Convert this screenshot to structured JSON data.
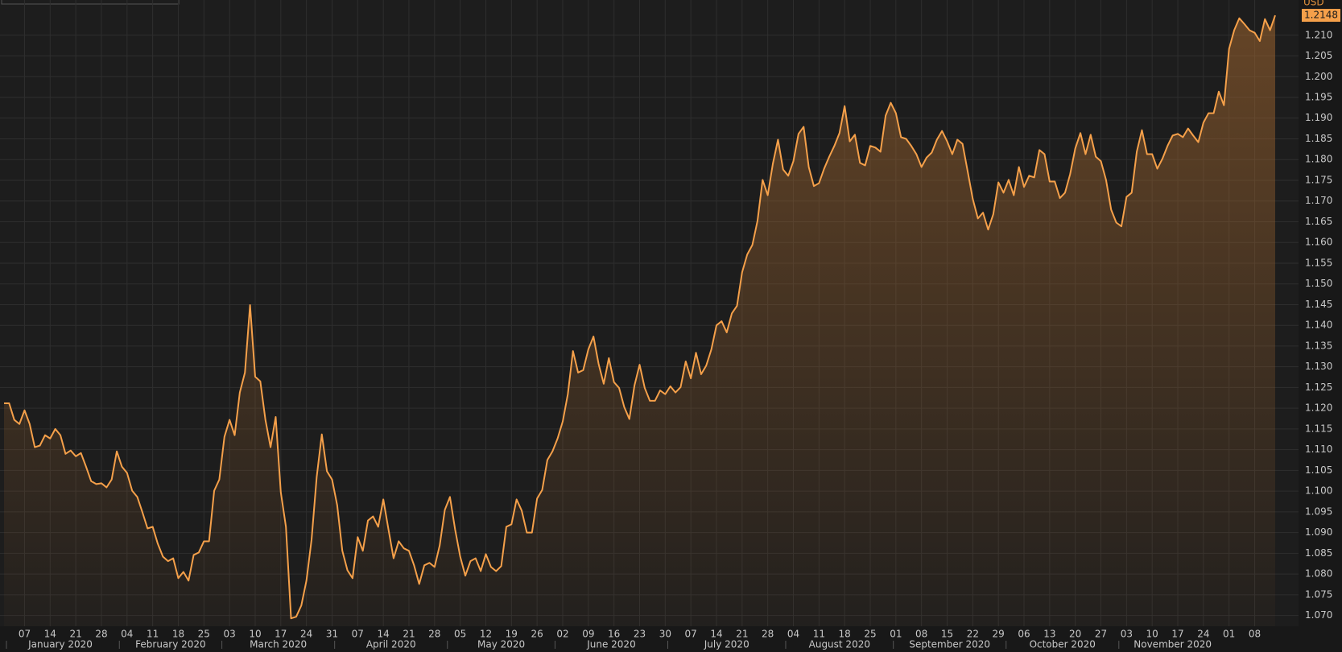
{
  "chart_data": {
    "type": "area",
    "unit": "USD",
    "color": "#f5a04a",
    "grid": true,
    "x": [
      "2020-01-01",
      "2020-01-02",
      "2020-01-03",
      "2020-01-06",
      "2020-01-07",
      "2020-01-08",
      "2020-01-09",
      "2020-01-10",
      "2020-01-13",
      "2020-01-14",
      "2020-01-15",
      "2020-01-16",
      "2020-01-17",
      "2020-01-20",
      "2020-01-21",
      "2020-01-22",
      "2020-01-23",
      "2020-01-24",
      "2020-01-27",
      "2020-01-28",
      "2020-01-29",
      "2020-01-30",
      "2020-01-31",
      "2020-02-03",
      "2020-02-04",
      "2020-02-05",
      "2020-02-06",
      "2020-02-07",
      "2020-02-10",
      "2020-02-11",
      "2020-02-12",
      "2020-02-13",
      "2020-02-14",
      "2020-02-17",
      "2020-02-18",
      "2020-02-19",
      "2020-02-20",
      "2020-02-21",
      "2020-02-24",
      "2020-02-25",
      "2020-02-26",
      "2020-02-27",
      "2020-02-28",
      "2020-03-02",
      "2020-03-03",
      "2020-03-04",
      "2020-03-05",
      "2020-03-06",
      "2020-03-09",
      "2020-03-10",
      "2020-03-11",
      "2020-03-12",
      "2020-03-13",
      "2020-03-16",
      "2020-03-17",
      "2020-03-18",
      "2020-03-19",
      "2020-03-20",
      "2020-03-23",
      "2020-03-24",
      "2020-03-25",
      "2020-03-26",
      "2020-03-27",
      "2020-03-30",
      "2020-03-31",
      "2020-04-01",
      "2020-04-02",
      "2020-04-03",
      "2020-04-06",
      "2020-04-07",
      "2020-04-08",
      "2020-04-09",
      "2020-04-10",
      "2020-04-13",
      "2020-04-14",
      "2020-04-15",
      "2020-04-16",
      "2020-04-17",
      "2020-04-20",
      "2020-04-21",
      "2020-04-22",
      "2020-04-23",
      "2020-04-24",
      "2020-04-27",
      "2020-04-28",
      "2020-04-29",
      "2020-04-30",
      "2020-05-01",
      "2020-05-04",
      "2020-05-05",
      "2020-05-06",
      "2020-05-07",
      "2020-05-08",
      "2020-05-11",
      "2020-05-12",
      "2020-05-13",
      "2020-05-14",
      "2020-05-15",
      "2020-05-18",
      "2020-05-19",
      "2020-05-20",
      "2020-05-21",
      "2020-05-22",
      "2020-05-25",
      "2020-05-26",
      "2020-05-27",
      "2020-05-28",
      "2020-05-29",
      "2020-06-01",
      "2020-06-02",
      "2020-06-03",
      "2020-06-04",
      "2020-06-05",
      "2020-06-08",
      "2020-06-09",
      "2020-06-10",
      "2020-06-11",
      "2020-06-12",
      "2020-06-15",
      "2020-06-16",
      "2020-06-17",
      "2020-06-18",
      "2020-06-19",
      "2020-06-22",
      "2020-06-23",
      "2020-06-24",
      "2020-06-25",
      "2020-06-26",
      "2020-06-29",
      "2020-06-30",
      "2020-07-01",
      "2020-07-02",
      "2020-07-03",
      "2020-07-06",
      "2020-07-07",
      "2020-07-08",
      "2020-07-09",
      "2020-07-10",
      "2020-07-13",
      "2020-07-14",
      "2020-07-15",
      "2020-07-16",
      "2020-07-17",
      "2020-07-20",
      "2020-07-21",
      "2020-07-22",
      "2020-07-23",
      "2020-07-24",
      "2020-07-27",
      "2020-07-28",
      "2020-07-29",
      "2020-07-30",
      "2020-07-31",
      "2020-08-03",
      "2020-08-04",
      "2020-08-05",
      "2020-08-06",
      "2020-08-07",
      "2020-08-10",
      "2020-08-11",
      "2020-08-12",
      "2020-08-13",
      "2020-08-14",
      "2020-08-17",
      "2020-08-18",
      "2020-08-19",
      "2020-08-20",
      "2020-08-21",
      "2020-08-24",
      "2020-08-25",
      "2020-08-26",
      "2020-08-27",
      "2020-08-28",
      "2020-08-31",
      "2020-09-01",
      "2020-09-02",
      "2020-09-03",
      "2020-09-04",
      "2020-09-07",
      "2020-09-08",
      "2020-09-09",
      "2020-09-10",
      "2020-09-11",
      "2020-09-14",
      "2020-09-15",
      "2020-09-16",
      "2020-09-17",
      "2020-09-18",
      "2020-09-21",
      "2020-09-22",
      "2020-09-23",
      "2020-09-24",
      "2020-09-25",
      "2020-09-28",
      "2020-09-29",
      "2020-09-30",
      "2020-10-01",
      "2020-10-02",
      "2020-10-05",
      "2020-10-06",
      "2020-10-07",
      "2020-10-08",
      "2020-10-09",
      "2020-10-12",
      "2020-10-13",
      "2020-10-14",
      "2020-10-15",
      "2020-10-16",
      "2020-10-19",
      "2020-10-20",
      "2020-10-21",
      "2020-10-22",
      "2020-10-23",
      "2020-10-26",
      "2020-10-27",
      "2020-10-28",
      "2020-10-29",
      "2020-10-30",
      "2020-11-02",
      "2020-11-03",
      "2020-11-04",
      "2020-11-05",
      "2020-11-06",
      "2020-11-09",
      "2020-11-10",
      "2020-11-11",
      "2020-11-12",
      "2020-11-13",
      "2020-11-16",
      "2020-11-17",
      "2020-11-18",
      "2020-11-19",
      "2020-11-20",
      "2020-11-23",
      "2020-11-24",
      "2020-11-25",
      "2020-11-26",
      "2020-11-27",
      "2020-11-30",
      "2020-12-01",
      "2020-12-02",
      "2020-12-03",
      "2020-12-04",
      "2020-12-07",
      "2020-12-08",
      "2020-12-09",
      "2020-12-10",
      "2020-12-11",
      "2020-12-14"
    ],
    "values": [
      1.1212,
      1.1212,
      1.1172,
      1.1162,
      1.1195,
      1.1162,
      1.1106,
      1.111,
      1.1135,
      1.1127,
      1.115,
      1.1135,
      1.109,
      1.1098,
      1.1084,
      1.1092,
      1.1059,
      1.1024,
      1.1017,
      1.1019,
      1.1009,
      1.1028,
      1.1096,
      1.1059,
      1.1044,
      1.1001,
      1.0986,
      1.0949,
      1.091,
      1.0914,
      1.0873,
      1.0842,
      1.0831,
      1.0838,
      1.079,
      1.0805,
      1.0784,
      1.0846,
      1.0852,
      1.0879,
      1.0879,
      1.1001,
      1.1028,
      1.1131,
      1.1172,
      1.1135,
      1.1238,
      1.1286,
      1.1449,
      1.1276,
      1.1265,
      1.1172,
      1.1106,
      1.1179,
      1.0997,
      1.0914,
      1.0693,
      1.0697,
      1.0724,
      1.0784,
      1.0883,
      1.1034,
      1.1137,
      1.1048,
      1.1028,
      1.0966,
      1.0856,
      1.0809,
      1.079,
      1.0889,
      1.0856,
      1.0929,
      1.0939,
      1.0914,
      1.098,
      1.0908,
      1.0838,
      1.0879,
      1.0862,
      1.0856,
      1.0821,
      1.0776,
      1.0821,
      1.0827,
      1.0817,
      1.0869,
      1.0955,
      1.0986,
      1.0908,
      1.0842,
      1.0796,
      1.0831,
      1.0838,
      1.0807,
      1.0848,
      1.0817,
      1.0807,
      1.0819,
      1.0914,
      1.092,
      1.098,
      1.0953,
      1.09,
      1.09,
      1.0982,
      1.1003,
      1.1075,
      1.1096,
      1.1127,
      1.1168,
      1.1234,
      1.1338,
      1.1286,
      1.1292,
      1.1342,
      1.1373,
      1.1307,
      1.1259,
      1.1321,
      1.1263,
      1.1249,
      1.1203,
      1.1174,
      1.1255,
      1.1305,
      1.1249,
      1.1218,
      1.1218,
      1.1243,
      1.1234,
      1.1253,
      1.1238,
      1.1251,
      1.1313,
      1.1272,
      1.1334,
      1.1282,
      1.1303,
      1.1342,
      1.14,
      1.141,
      1.1383,
      1.1429,
      1.1447,
      1.1528,
      1.1571,
      1.1594,
      1.1652,
      1.1751,
      1.1714,
      1.179,
      1.1848,
      1.1776,
      1.1761,
      1.1796,
      1.1862,
      1.1879,
      1.1782,
      1.1736,
      1.1743,
      1.1778,
      1.1807,
      1.1833,
      1.1864,
      1.1929,
      1.1844,
      1.186,
      1.1792,
      1.1786,
      1.1833,
      1.1829,
      1.1819,
      1.1906,
      1.1937,
      1.1912,
      1.1854,
      1.185,
      1.1833,
      1.1813,
      1.1782,
      1.1805,
      1.1817,
      1.1848,
      1.1869,
      1.1844,
      1.1813,
      1.1848,
      1.1838,
      1.1772,
      1.1705,
      1.1658,
      1.1672,
      1.1631,
      1.1668,
      1.1745,
      1.172,
      1.1751,
      1.1714,
      1.1782,
      1.1734,
      1.1761,
      1.1757,
      1.1823,
      1.1813,
      1.1747,
      1.1747,
      1.1707,
      1.172,
      1.1765,
      1.1827,
      1.1864,
      1.1813,
      1.186,
      1.1807,
      1.1796,
      1.1751,
      1.1679,
      1.1648,
      1.1639,
      1.171,
      1.172,
      1.1819,
      1.1871,
      1.1813,
      1.1813,
      1.1778,
      1.1802,
      1.1833,
      1.1858,
      1.1862,
      1.1854,
      1.1875,
      1.1858,
      1.1842,
      1.1889,
      1.1912,
      1.1912,
      1.1964,
      1.1931,
      1.2067,
      1.2112,
      1.2141,
      1.2127,
      1.2112,
      1.2106,
      1.2086,
      1.2139,
      1.2112,
      1.2148
    ],
    "ylim": [
      1.0674,
      1.2185
    ],
    "yticks": [
      {
        "value": 1.07,
        "label": "1.070"
      },
      1.075,
      {
        "value": 1.08,
        "label": "1.080"
      },
      1.085,
      {
        "value": 1.09,
        "label": "1.090"
      },
      1.095,
      {
        "value": 1.1,
        "label": "1.100"
      },
      1.105,
      {
        "value": 1.11,
        "label": "1.110"
      },
      1.115,
      {
        "value": 1.12,
        "label": "1.120"
      },
      1.125,
      {
        "value": 1.13,
        "label": "1.130"
      },
      1.135,
      {
        "value": 1.14,
        "label": "1.140"
      },
      1.145,
      {
        "value": 1.15,
        "label": "1.150"
      },
      1.155,
      {
        "value": 1.16,
        "label": "1.160"
      },
      1.165,
      {
        "value": 1.17,
        "label": "1.170"
      },
      1.175,
      {
        "value": 1.18,
        "label": "1.180"
      },
      1.185,
      {
        "value": 1.19,
        "label": "1.190"
      },
      1.195,
      {
        "value": 1.2,
        "label": "1.200"
      },
      1.205,
      {
        "value": 1.21,
        "label": "1.210"
      }
    ],
    "xticks": [
      {
        "value": "2020-01-07",
        "label": "07"
      },
      {
        "value": "2020-01-14",
        "label": "14"
      },
      {
        "value": "2020-01-21",
        "label": "21"
      },
      {
        "value": "2020-01-28",
        "label": "28"
      },
      {
        "value": "2020-02-04",
        "label": "04"
      },
      {
        "value": "2020-02-11",
        "label": "11"
      },
      {
        "value": "2020-02-18",
        "label": "18"
      },
      {
        "value": "2020-02-25",
        "label": "25"
      },
      {
        "value": "2020-03-03",
        "label": "03"
      },
      {
        "value": "2020-03-10",
        "label": "10"
      },
      {
        "value": "2020-03-17",
        "label": "17"
      },
      {
        "value": "2020-03-24",
        "label": "24"
      },
      {
        "value": "2020-03-31",
        "label": "31"
      },
      {
        "value": "2020-04-07",
        "label": "07"
      },
      {
        "value": "2020-04-14",
        "label": "14"
      },
      {
        "value": "2020-04-21",
        "label": "21"
      },
      {
        "value": "2020-04-28",
        "label": "28"
      },
      {
        "value": "2020-05-05",
        "label": "05"
      },
      {
        "value": "2020-05-12",
        "label": "12"
      },
      {
        "value": "2020-05-19",
        "label": "19"
      },
      {
        "value": "2020-05-26",
        "label": "26"
      },
      {
        "value": "2020-06-02",
        "label": "02"
      },
      {
        "value": "2020-06-09",
        "label": "09"
      },
      {
        "value": "2020-06-16",
        "label": "16"
      },
      {
        "value": "2020-06-23",
        "label": "23"
      },
      {
        "value": "2020-06-30",
        "label": "30"
      },
      {
        "value": "2020-07-07",
        "label": "07"
      },
      {
        "value": "2020-07-14",
        "label": "14"
      },
      {
        "value": "2020-07-21",
        "label": "21"
      },
      {
        "value": "2020-07-28",
        "label": "28"
      },
      {
        "value": "2020-08-04",
        "label": "04"
      },
      {
        "value": "2020-08-11",
        "label": "11"
      },
      {
        "value": "2020-08-18",
        "label": "18"
      },
      {
        "value": "2020-08-25",
        "label": "25"
      },
      {
        "value": "2020-09-01",
        "label": "01"
      },
      {
        "value": "2020-09-08",
        "label": "08"
      },
      {
        "value": "2020-09-15",
        "label": "15"
      },
      {
        "value": "2020-09-22",
        "label": "22"
      },
      {
        "value": "2020-09-29",
        "label": "29"
      },
      {
        "value": "2020-10-06",
        "label": "06"
      },
      {
        "value": "2020-10-13",
        "label": "13"
      },
      {
        "value": "2020-10-20",
        "label": "20"
      },
      {
        "value": "2020-10-27",
        "label": "27"
      },
      {
        "value": "2020-11-03",
        "label": "03"
      },
      {
        "value": "2020-11-10",
        "label": "10"
      },
      {
        "value": "2020-11-17",
        "label": "17"
      },
      {
        "value": "2020-11-24",
        "label": "24"
      },
      {
        "value": "2020-12-01",
        "label": "01"
      },
      {
        "value": "2020-12-08",
        "label": "08"
      }
    ],
    "months": [
      {
        "value": "2020-01",
        "label": "January 2020"
      },
      {
        "value": "2020-02",
        "label": "February 2020"
      },
      {
        "value": "2020-03",
        "label": "March 2020"
      },
      {
        "value": "2020-04",
        "label": "April 2020"
      },
      {
        "value": "2020-05",
        "label": "May 2020"
      },
      {
        "value": "2020-06",
        "label": "June 2020"
      },
      {
        "value": "2020-07",
        "label": "July 2020"
      },
      {
        "value": "2020-08",
        "label": "August 2020"
      },
      {
        "value": "2020-09",
        "label": "September 2020"
      },
      {
        "value": "2020-10",
        "label": "October 2020"
      },
      {
        "value": "2020-11",
        "label": "November 2020"
      }
    ]
  }
}
